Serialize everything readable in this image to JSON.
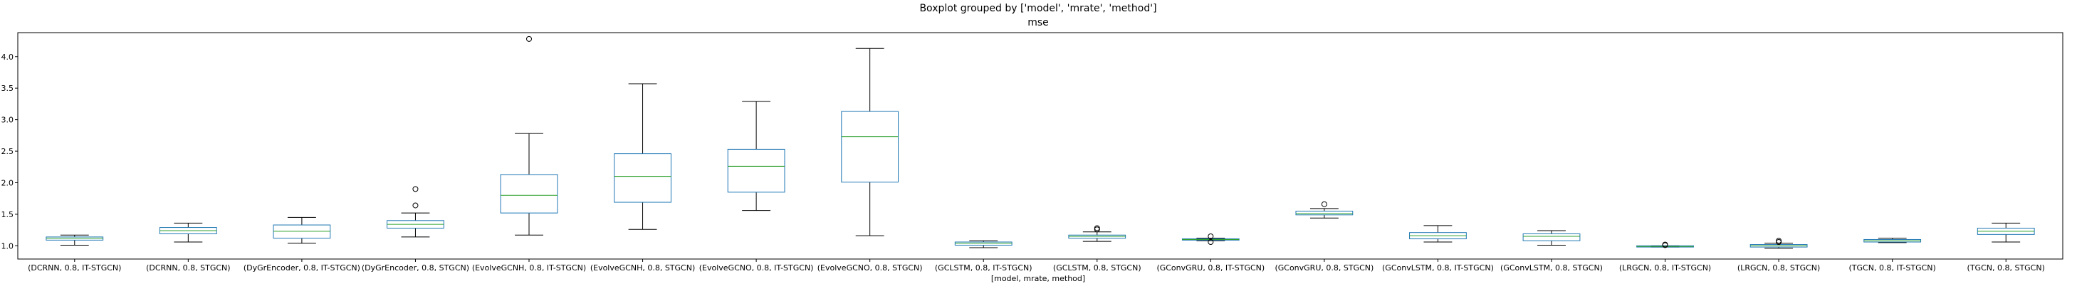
{
  "chart_data": {
    "type": "boxplot",
    "suptitle": "Boxplot grouped by ['model', 'mrate', 'method']",
    "title": "mse",
    "xlabel": "[model, mrate, method]",
    "ylabel": "",
    "ylim": [
      0.79,
      4.38
    ],
    "yticks": [
      "1.0",
      "1.5",
      "2.0",
      "2.5",
      "3.0",
      "3.5",
      "4.0"
    ],
    "grid": false,
    "colors": {
      "box": "#1f77b4",
      "median": "#2ca02c",
      "whisker": "#000000",
      "flier": "#000000",
      "axis": "#000000"
    },
    "categories": [
      "(DCRNN, 0.8, IT-STGCN)",
      "(DCRNN, 0.8, STGCN)",
      "(DyGrEncoder, 0.8, IT-STGCN)",
      "(DyGrEncoder, 0.8, STGCN)",
      "(EvolveGCNH, 0.8, IT-STGCN)",
      "(EvolveGCNH, 0.8, STGCN)",
      "(EvolveGCNO, 0.8, IT-STGCN)",
      "(EvolveGCNO, 0.8, STGCN)",
      "(GCLSTM, 0.8, IT-STGCN)",
      "(GCLSTM, 0.8, STGCN)",
      "(GConvGRU, 0.8, IT-STGCN)",
      "(GConvGRU, 0.8, STGCN)",
      "(GConvLSTM, 0.8, IT-STGCN)",
      "(GConvLSTM, 0.8, STGCN)",
      "(LRGCN, 0.8, IT-STGCN)",
      "(LRGCN, 0.8, STGCN)",
      "(TGCN, 0.8, IT-STGCN)",
      "(TGCN, 0.8, STGCN)"
    ],
    "boxes": [
      {
        "wlo": 1.01,
        "q1": 1.09,
        "med": 1.12,
        "q3": 1.14,
        "whi": 1.17,
        "fliers": []
      },
      {
        "wlo": 1.06,
        "q1": 1.19,
        "med": 1.24,
        "q3": 1.29,
        "whi": 1.36,
        "fliers": []
      },
      {
        "wlo": 1.04,
        "q1": 1.12,
        "med": 1.23,
        "q3": 1.33,
        "whi": 1.45,
        "fliers": []
      },
      {
        "wlo": 1.14,
        "q1": 1.28,
        "med": 1.34,
        "q3": 1.4,
        "whi": 1.52,
        "fliers": [
          1.64,
          1.9
        ]
      },
      {
        "wlo": 1.17,
        "q1": 1.52,
        "med": 1.8,
        "q3": 2.13,
        "whi": 2.78,
        "fliers": [
          4.28
        ]
      },
      {
        "wlo": 1.26,
        "q1": 1.69,
        "med": 2.1,
        "q3": 2.46,
        "whi": 3.57,
        "fliers": []
      },
      {
        "wlo": 1.56,
        "q1": 1.85,
        "med": 2.26,
        "q3": 2.53,
        "whi": 3.29,
        "fliers": []
      },
      {
        "wlo": 1.16,
        "q1": 2.01,
        "med": 2.73,
        "q3": 3.13,
        "whi": 4.13,
        "fliers": []
      },
      {
        "wlo": 0.97,
        "q1": 1.01,
        "med": 1.04,
        "q3": 1.06,
        "whi": 1.08,
        "fliers": []
      },
      {
        "wlo": 1.07,
        "q1": 1.12,
        "med": 1.15,
        "q3": 1.17,
        "whi": 1.22,
        "fliers": [
          1.26,
          1.28
        ]
      },
      {
        "wlo": 1.08,
        "q1": 1.09,
        "med": 1.1,
        "q3": 1.11,
        "whi": 1.12,
        "fliers": [
          1.06,
          1.15
        ]
      },
      {
        "wlo": 1.44,
        "q1": 1.49,
        "med": 1.51,
        "q3": 1.55,
        "whi": 1.59,
        "fliers": [
          1.66
        ]
      },
      {
        "wlo": 1.06,
        "q1": 1.11,
        "med": 1.16,
        "q3": 1.21,
        "whi": 1.32,
        "fliers": []
      },
      {
        "wlo": 1.01,
        "q1": 1.08,
        "med": 1.15,
        "q3": 1.19,
        "whi": 1.24,
        "fliers": []
      },
      {
        "wlo": 0.98,
        "q1": 0.98,
        "med": 0.99,
        "q3": 1.0,
        "whi": 1.0,
        "fliers": [
          1.01,
          1.02
        ]
      },
      {
        "wlo": 0.96,
        "q1": 0.98,
        "med": 1.0,
        "q3": 1.02,
        "whi": 1.04,
        "fliers": [
          1.06,
          1.08
        ]
      },
      {
        "wlo": 1.05,
        "q1": 1.06,
        "med": 1.08,
        "q3": 1.1,
        "whi": 1.12,
        "fliers": []
      },
      {
        "wlo": 1.06,
        "q1": 1.18,
        "med": 1.23,
        "q3": 1.28,
        "whi": 1.36,
        "fliers": []
      }
    ]
  }
}
